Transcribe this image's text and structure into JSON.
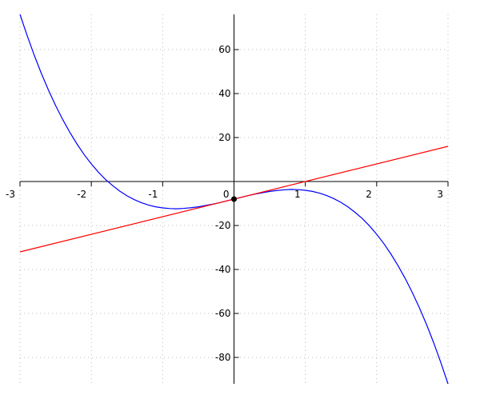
{
  "chart_data": {
    "type": "line",
    "series": [
      {
        "color": "#0000ff",
        "x": [
          -3,
          -2.9,
          -2.8,
          -2.7,
          -2.6,
          -2.5,
          -2.4,
          -2.3,
          -2.2,
          -2.1,
          -2,
          -1.9,
          -1.8,
          -1.7,
          -1.6,
          -1.5,
          -1.4,
          -1.3,
          -1.2,
          -1.1,
          -1,
          -0.9,
          -0.8,
          -0.7,
          -0.6,
          -0.5,
          -0.4,
          -0.3,
          -0.2,
          -0.1,
          0,
          0.1,
          0.2,
          0.3,
          0.4,
          0.5,
          0.6,
          0.7,
          0.8,
          0.9,
          1,
          1.1,
          1.2,
          1.3,
          1.4,
          1.5,
          1.6,
          1.7,
          1.8,
          1.9,
          2,
          2.1,
          2.2,
          2.3,
          2.4,
          2.5,
          2.6,
          2.7,
          2.8,
          2.9,
          3
        ],
        "values": [
          76,
          66.4,
          57.4,
          49.1,
          41.5,
          34.5,
          28.1,
          22.3,
          17,
          12.2,
          8,
          4.2,
          0.9,
          -1.9,
          -4.4,
          -6.5,
          -8.2,
          -9.6,
          -10.7,
          -11.5,
          -12,
          -12.3,
          -12.4,
          -12.2,
          -11.9,
          -11.5,
          -10.9,
          -10.3,
          -9.6,
          -8.8,
          -8,
          -7.2,
          -6.4,
          -5.7,
          -5.1,
          -4.5,
          -4.1,
          -3.8,
          -3.6,
          -3.7,
          -4,
          -4.5,
          -5.3,
          -6.4,
          -7.8,
          -9.5,
          -11.6,
          -14.1,
          -16.9,
          -20.2,
          -24,
          -28.2,
          -33,
          -38.3,
          -44.1,
          -50.5,
          -57.5,
          -65.1,
          -73.4,
          -82.4,
          -92
        ]
      },
      {
        "color": "#ff0000",
        "x": [
          -3,
          3
        ],
        "values": [
          -32,
          16
        ]
      }
    ],
    "points": {
      "color": "#000000",
      "x": [
        0
      ],
      "values": [
        -8
      ]
    },
    "xlim": [
      -3,
      3
    ],
    "ylim": [
      -92,
      76
    ],
    "xticks": [
      -3,
      -2,
      -1,
      0,
      1,
      2,
      3
    ],
    "yticks": [
      -80,
      -60,
      -40,
      -20,
      20,
      40,
      60
    ],
    "grid": true
  }
}
